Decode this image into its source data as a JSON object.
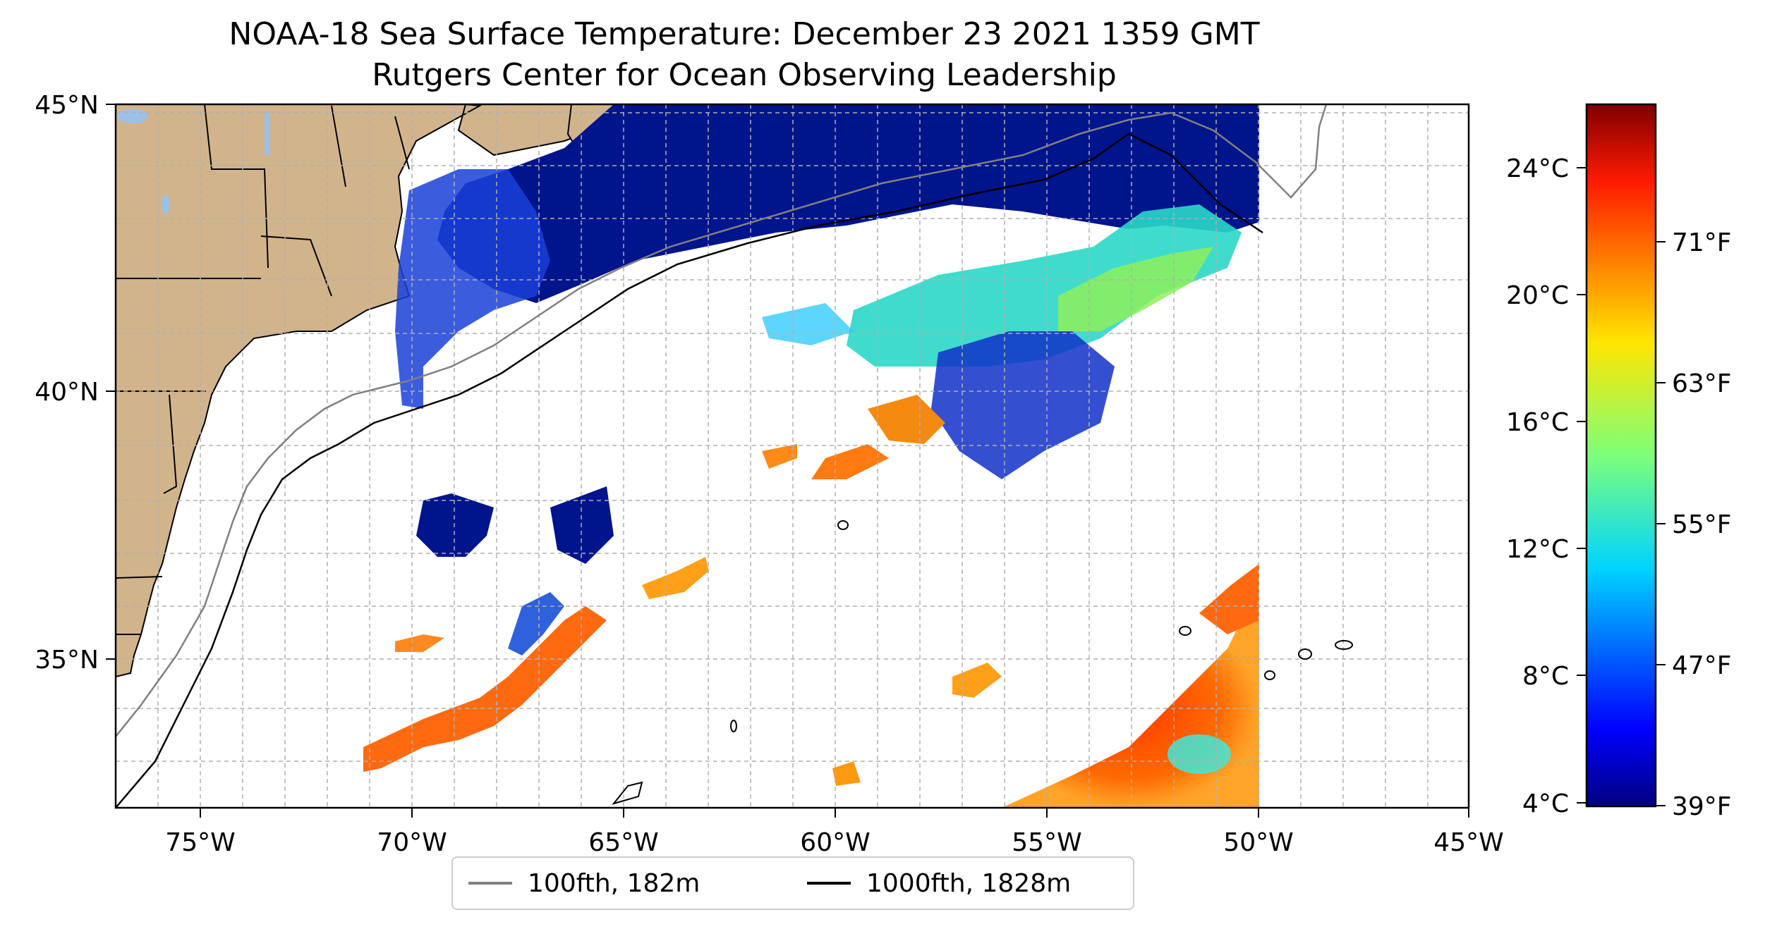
{
  "title": "NOAA-18 Sea Surface Temperature: December 23 2021 1359 GMT",
  "subtitle": "Rutgers Center for Ocean Observing Leadership",
  "map": {
    "lon_range": [
      -77,
      -45
    ],
    "lat_range": [
      32.2,
      45
    ],
    "lon_ticks": [
      "75°W",
      "70°W",
      "65°W",
      "60°W",
      "55°W",
      "50°W",
      "45°W"
    ],
    "lat_ticks": [
      "35°N",
      "40°N",
      "45°N"
    ],
    "grid": true,
    "land_color": "#d2b48c",
    "lake_color": "#9cc0e8",
    "data_extent_lon": [
      -70.5,
      -50
    ],
    "missing_data": "white (cloud cover)"
  },
  "colorbar": {
    "colormap": "jet",
    "celsius_ticks": [
      "24°C",
      "20°C",
      "16°C",
      "12°C",
      "8°C",
      "4°C"
    ],
    "fahrenheit_ticks": [
      "71°F",
      "63°F",
      "55°F",
      "47°F",
      "39°F"
    ],
    "range_c": [
      3.9,
      26
    ]
  },
  "legend": {
    "items": [
      {
        "label": "100fth, 182m",
        "color": "#808080"
      },
      {
        "label": "1000fth, 1828m",
        "color": "#000000"
      }
    ]
  }
}
